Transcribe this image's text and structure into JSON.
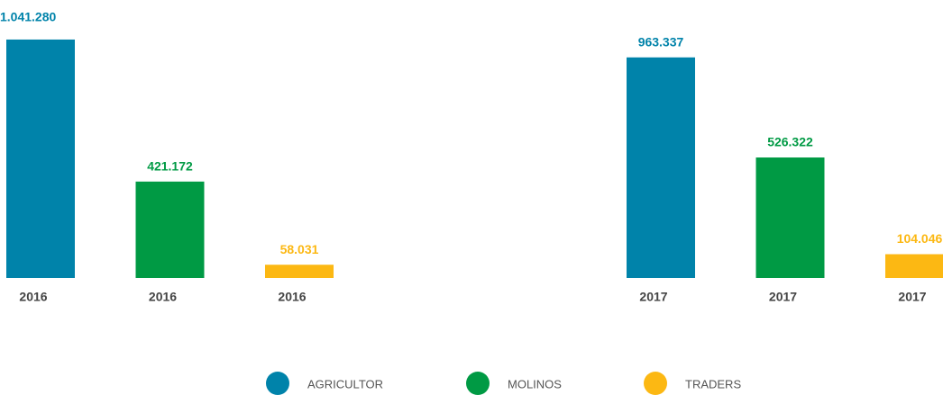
{
  "chart_data": {
    "type": "bar",
    "categories": [
      "2016",
      "2017"
    ],
    "series": [
      {
        "name": "AGRICULTOR",
        "color": "#0083aa",
        "values": [
          1041280,
          963337
        ],
        "value_labels": [
          "1.041.280",
          "963.337"
        ]
      },
      {
        "name": "MOLINOS",
        "color": "#009a44",
        "values": [
          421172,
          526322
        ],
        "value_labels": [
          "421.172",
          "526.322"
        ]
      },
      {
        "name": "TRADERS",
        "color": "#fcb813",
        "values": [
          58031,
          104046
        ],
        "value_labels": [
          "58.031",
          "104.046"
        ]
      }
    ],
    "ylim": [
      0,
      1100000
    ],
    "grid": false,
    "legend": "bottom"
  }
}
